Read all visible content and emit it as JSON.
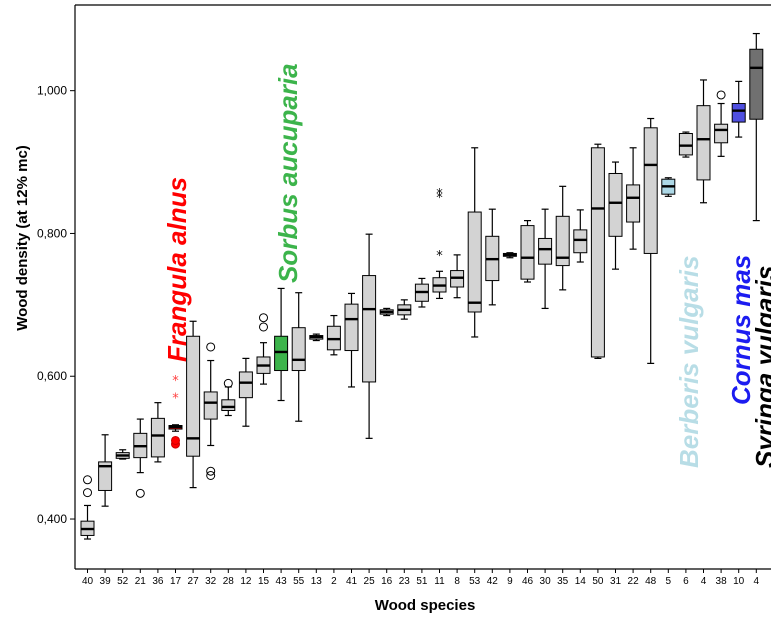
{
  "chart_data": {
    "type": "boxplot",
    "xlabel": "Wood species",
    "ylabel": "Wood density (at 12% mc)",
    "ylim": [
      0.33,
      1.12
    ],
    "yticks": [
      0.4,
      0.6,
      0.8,
      1.0
    ],
    "ytick_labels": [
      "0,400",
      "0,600",
      "0,800",
      "1,000"
    ],
    "default_box_color": "#d3d3d3",
    "categories": [
      "40",
      "39",
      "52",
      "21",
      "36",
      "17",
      "27",
      "32",
      "28",
      "12",
      "15",
      "43",
      "55",
      "13",
      "2",
      "41",
      "25",
      "16",
      "23",
      "51",
      "11",
      "8",
      "53",
      "42",
      "9",
      "46",
      "30",
      "35",
      "14",
      "50",
      "31",
      "22",
      "48",
      "5",
      "6",
      "4",
      "38",
      "10",
      "4"
    ],
    "boxes": [
      {
        "min": 0.372,
        "q1": 0.377,
        "median": 0.386,
        "q3": 0.397,
        "max": 0.419,
        "outliers": [
          0.437,
          0.455
        ],
        "extremes": []
      },
      {
        "min": 0.418,
        "q1": 0.44,
        "median": 0.474,
        "q3": 0.48,
        "max": 0.518,
        "outliers": [],
        "extremes": []
      },
      {
        "min": 0.484,
        "q1": 0.485,
        "median": 0.489,
        "q3": 0.493,
        "max": 0.497,
        "outliers": [],
        "extremes": []
      },
      {
        "min": 0.465,
        "q1": 0.486,
        "median": 0.502,
        "q3": 0.52,
        "max": 0.54,
        "outliers": [
          0.436
        ],
        "extremes": []
      },
      {
        "min": 0.48,
        "q1": 0.487,
        "median": 0.517,
        "q3": 0.541,
        "max": 0.563,
        "outliers": [],
        "extremes": []
      },
      {
        "min": 0.523,
        "q1": 0.526,
        "median": 0.529,
        "q3": 0.531,
        "max": 0.532,
        "outliers": [
          0.505,
          0.51
        ],
        "extremes": [
          0.57,
          0.595
        ],
        "color": "#ff0000"
      },
      {
        "min": 0.444,
        "q1": 0.488,
        "median": 0.513,
        "q3": 0.656,
        "max": 0.677,
        "outliers": [],
        "extremes": []
      },
      {
        "min": 0.503,
        "q1": 0.54,
        "median": 0.563,
        "q3": 0.578,
        "max": 0.622,
        "outliers": [
          0.461,
          0.467,
          0.641
        ],
        "extremes": []
      },
      {
        "min": 0.545,
        "q1": 0.552,
        "median": 0.557,
        "q3": 0.567,
        "max": 0.585,
        "outliers": [
          0.59
        ],
        "extremes": []
      },
      {
        "min": 0.53,
        "q1": 0.57,
        "median": 0.591,
        "q3": 0.606,
        "max": 0.625,
        "outliers": [],
        "extremes": []
      },
      {
        "min": 0.589,
        "q1": 0.604,
        "median": 0.615,
        "q3": 0.627,
        "max": 0.647,
        "outliers": [
          0.669,
          0.682
        ],
        "extremes": []
      },
      {
        "min": 0.566,
        "q1": 0.608,
        "median": 0.634,
        "q3": 0.656,
        "max": 0.723,
        "outliers": [],
        "extremes": [],
        "color": "#3cb44b"
      },
      {
        "min": 0.537,
        "q1": 0.608,
        "median": 0.623,
        "q3": 0.668,
        "max": 0.717,
        "outliers": [],
        "extremes": []
      },
      {
        "min": 0.65,
        "q1": 0.652,
        "median": 0.655,
        "q3": 0.657,
        "max": 0.659,
        "outliers": [],
        "extremes": []
      },
      {
        "min": 0.63,
        "q1": 0.637,
        "median": 0.652,
        "q3": 0.67,
        "max": 0.685,
        "outliers": [],
        "extremes": []
      },
      {
        "min": 0.585,
        "q1": 0.636,
        "median": 0.68,
        "q3": 0.701,
        "max": 0.716,
        "outliers": [],
        "extremes": []
      },
      {
        "min": 0.513,
        "q1": 0.592,
        "median": 0.694,
        "q3": 0.741,
        "max": 0.799,
        "outliers": [],
        "extremes": []
      },
      {
        "min": 0.685,
        "q1": 0.687,
        "median": 0.69,
        "q3": 0.693,
        "max": 0.695,
        "outliers": [],
        "extremes": []
      },
      {
        "min": 0.68,
        "q1": 0.686,
        "median": 0.693,
        "q3": 0.7,
        "max": 0.707,
        "outliers": [],
        "extremes": []
      },
      {
        "min": 0.697,
        "q1": 0.705,
        "median": 0.718,
        "q3": 0.729,
        "max": 0.737,
        "outliers": [],
        "extremes": []
      },
      {
        "min": 0.709,
        "q1": 0.718,
        "median": 0.727,
        "q3": 0.738,
        "max": 0.747,
        "outliers": [],
        "extremes": [
          0.77,
          0.851,
          0.857
        ]
      },
      {
        "min": 0.71,
        "q1": 0.725,
        "median": 0.738,
        "q3": 0.748,
        "max": 0.77,
        "outliers": [],
        "extremes": []
      },
      {
        "min": 0.655,
        "q1": 0.69,
        "median": 0.703,
        "q3": 0.83,
        "max": 0.92,
        "outliers": [],
        "extremes": []
      },
      {
        "min": 0.7,
        "q1": 0.734,
        "median": 0.764,
        "q3": 0.796,
        "max": 0.834,
        "outliers": [],
        "extremes": []
      },
      {
        "min": 0.766,
        "q1": 0.768,
        "median": 0.77,
        "q3": 0.772,
        "max": 0.773,
        "outliers": [],
        "extremes": []
      },
      {
        "min": 0.732,
        "q1": 0.736,
        "median": 0.766,
        "q3": 0.811,
        "max": 0.818,
        "outliers": [],
        "extremes": []
      },
      {
        "min": 0.695,
        "q1": 0.757,
        "median": 0.778,
        "q3": 0.793,
        "max": 0.834,
        "outliers": [],
        "extremes": []
      },
      {
        "min": 0.721,
        "q1": 0.755,
        "median": 0.766,
        "q3": 0.824,
        "max": 0.866,
        "outliers": [],
        "extremes": []
      },
      {
        "min": 0.76,
        "q1": 0.773,
        "median": 0.791,
        "q3": 0.805,
        "max": 0.833,
        "outliers": [],
        "extremes": []
      },
      {
        "min": 0.625,
        "q1": 0.627,
        "median": 0.835,
        "q3": 0.92,
        "max": 0.925,
        "outliers": [],
        "extremes": []
      },
      {
        "min": 0.75,
        "q1": 0.796,
        "median": 0.843,
        "q3": 0.884,
        "max": 0.9,
        "outliers": [],
        "extremes": []
      },
      {
        "min": 0.778,
        "q1": 0.816,
        "median": 0.85,
        "q3": 0.868,
        "max": 0.92,
        "outliers": [],
        "extremes": []
      },
      {
        "min": 0.618,
        "q1": 0.772,
        "median": 0.896,
        "q3": 0.948,
        "max": 0.961,
        "outliers": [],
        "extremes": []
      },
      {
        "min": 0.852,
        "q1": 0.855,
        "median": 0.866,
        "q3": 0.876,
        "max": 0.878,
        "outliers": [],
        "extremes": [],
        "color": "#add8e6"
      },
      {
        "min": 0.907,
        "q1": 0.91,
        "median": 0.923,
        "q3": 0.94,
        "max": 0.942,
        "outliers": [],
        "extremes": []
      },
      {
        "min": 0.843,
        "q1": 0.875,
        "median": 0.932,
        "q3": 0.979,
        "max": 1.015,
        "outliers": [],
        "extremes": []
      },
      {
        "min": 0.908,
        "q1": 0.927,
        "median": 0.945,
        "q3": 0.953,
        "max": 0.982,
        "outliers": [
          0.994
        ],
        "extremes": []
      },
      {
        "min": 0.935,
        "q1": 0.956,
        "median": 0.972,
        "q3": 0.982,
        "max": 1.013,
        "outliers": [],
        "extremes": [],
        "color": "#4f4fe0"
      },
      {
        "min": 0.818,
        "q1": 0.96,
        "median": 1.032,
        "q3": 1.058,
        "max": 1.08,
        "outliers": [],
        "extremes": [],
        "color": "#707070"
      }
    ],
    "annotations": [
      {
        "text": "Frangula alnus",
        "color": "#ff0000"
      },
      {
        "text": "Sorbus aucuparia",
        "color": "#3cb44b"
      },
      {
        "text": "Berberis vulgaris",
        "color": "#b8dde6"
      },
      {
        "text": "Cornus mas",
        "color": "#1c1cf0"
      },
      {
        "text": "Syringa vulgaris",
        "color": "#000000"
      }
    ]
  }
}
